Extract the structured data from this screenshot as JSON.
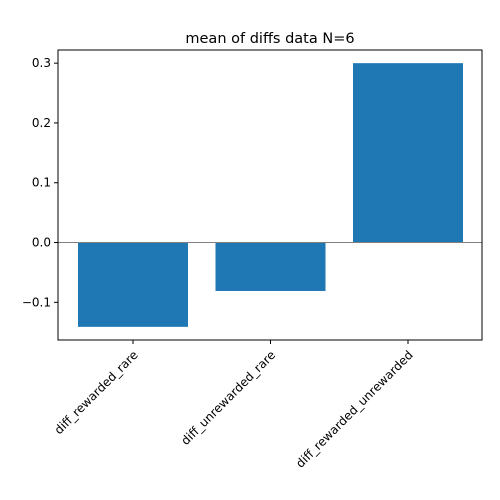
{
  "chart_data": {
    "type": "bar",
    "title": "mean of diffs data N=6",
    "xlabel": "",
    "ylabel": "",
    "categories": [
      "diff_rewarded_rare",
      "diff_unrewarded_rare",
      "diff_rewarded_unrewarded"
    ],
    "values": [
      -0.141,
      -0.081,
      0.3
    ],
    "ylim": [
      -0.163,
      0.322
    ],
    "yticks": [
      -0.1,
      0.0,
      0.1,
      0.2,
      0.3
    ],
    "ytick_labels": [
      "−0.1",
      "0.0",
      "0.1",
      "0.2",
      "0.3"
    ],
    "zero_line": true,
    "grid": false,
    "bar_color": "#1f77b4",
    "zero_line_color": "#808080"
  }
}
